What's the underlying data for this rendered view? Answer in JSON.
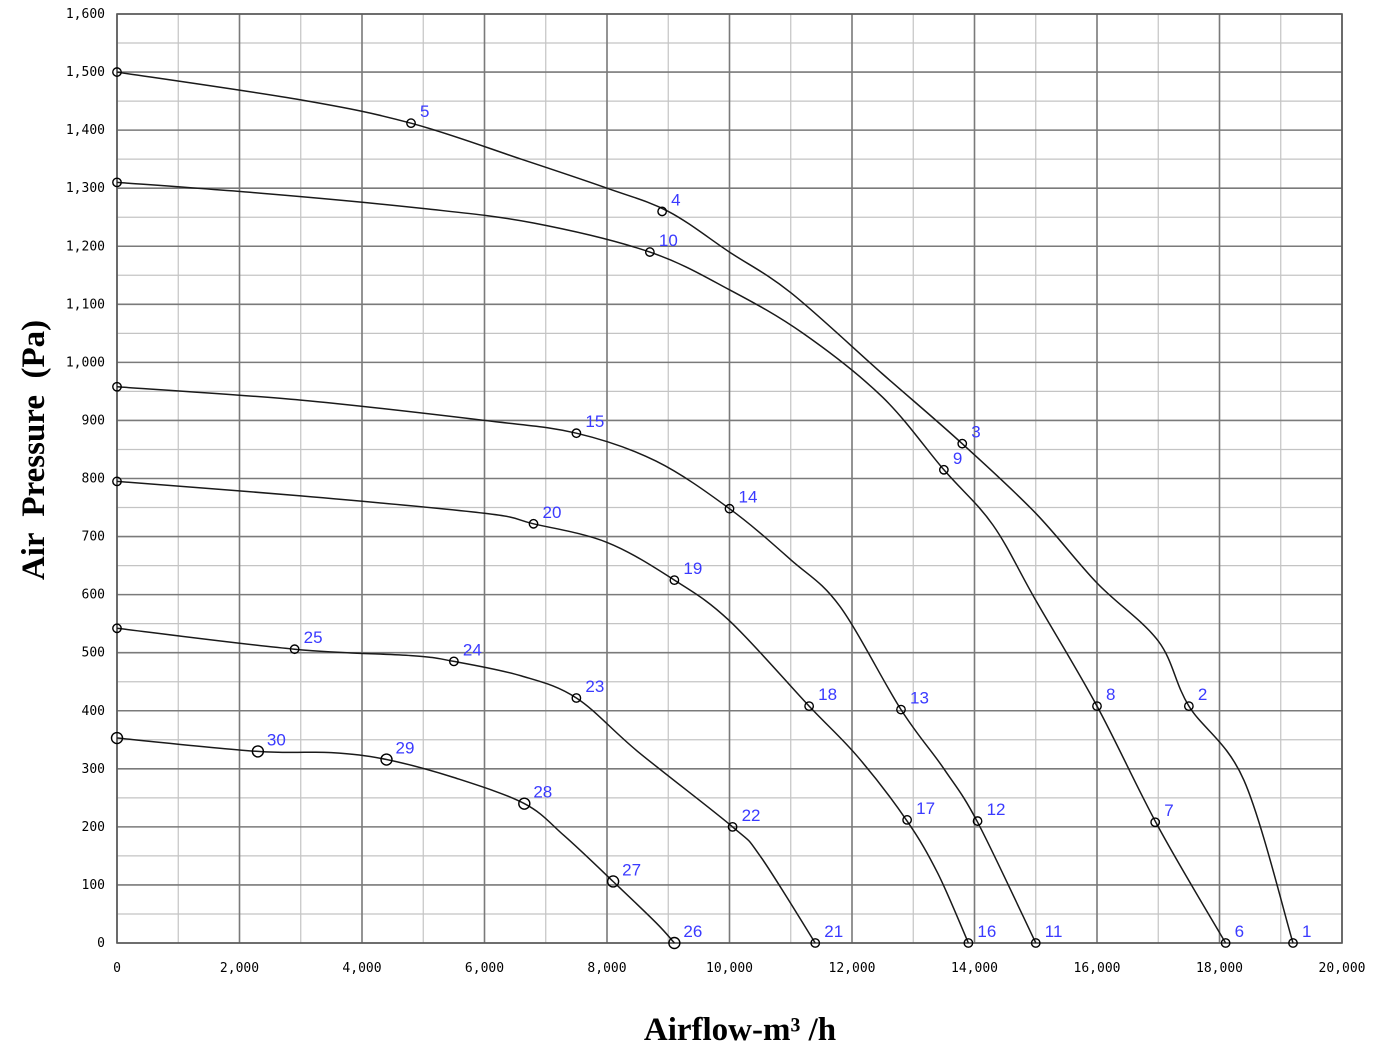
{
  "chart_data": {
    "type": "line",
    "xlabel": "Airflow-m³ /h",
    "ylabel": "Air  Pressure  (Pa)",
    "xlim": [
      0,
      20000
    ],
    "ylim": [
      0,
      1600
    ],
    "grid": true,
    "x_ticks": [
      {
        "value": 0,
        "label": "0"
      },
      {
        "value": 2000,
        "label": "2,000"
      },
      {
        "value": 4000,
        "label": "4,000"
      },
      {
        "value": 6000,
        "label": "6,000"
      },
      {
        "value": 8000,
        "label": "8,000"
      },
      {
        "value": 10000,
        "label": "10,000"
      },
      {
        "value": 12000,
        "label": "12,000"
      },
      {
        "value": 14000,
        "label": "14,000"
      },
      {
        "value": 16000,
        "label": "16,000"
      },
      {
        "value": 18000,
        "label": "18,000"
      },
      {
        "value": 20000,
        "label": "20,000"
      }
    ],
    "y_ticks": [
      {
        "value": 0,
        "label": "0"
      },
      {
        "value": 100,
        "label": "100"
      },
      {
        "value": 200,
        "label": "200"
      },
      {
        "value": 300,
        "label": "300"
      },
      {
        "value": 400,
        "label": "400"
      },
      {
        "value": 500,
        "label": "500"
      },
      {
        "value": 600,
        "label": "600"
      },
      {
        "value": 700,
        "label": "700"
      },
      {
        "value": 800,
        "label": "800"
      },
      {
        "value": 900,
        "label": "900"
      },
      {
        "value": 1000,
        "label": "1,000"
      },
      {
        "value": 1100,
        "label": "1,100"
      },
      {
        "value": 1200,
        "label": "1,200"
      },
      {
        "value": 1300,
        "label": "1,300"
      },
      {
        "value": 1400,
        "label": "1,400"
      },
      {
        "value": 1500,
        "label": "1,500"
      },
      {
        "value": 1600,
        "label": "1,600"
      }
    ],
    "series": [
      {
        "curve": [
          [
            0,
            1500
          ],
          [
            3000,
            1452
          ],
          [
            4800,
            1412
          ],
          [
            6600,
            1350
          ],
          [
            8000,
            1300
          ],
          [
            9000,
            1260
          ],
          [
            10000,
            1190
          ],
          [
            11000,
            1120
          ],
          [
            12500,
            980
          ],
          [
            13800,
            860
          ],
          [
            15000,
            740
          ],
          [
            16000,
            620
          ],
          [
            17000,
            520
          ],
          [
            17500,
            408
          ],
          [
            18400,
            280
          ],
          [
            19200,
            0
          ]
        ],
        "points": [
          {
            "label": "",
            "x": 0,
            "y": 1500
          },
          {
            "label": "5",
            "x": 4800,
            "y": 1412
          },
          {
            "label": "4",
            "x": 8900,
            "y": 1260
          },
          {
            "label": "3",
            "x": 13800,
            "y": 860
          },
          {
            "label": "2",
            "x": 17500,
            "y": 408
          },
          {
            "label": "1",
            "x": 19200,
            "y": 0
          }
        ]
      },
      {
        "curve": [
          [
            0,
            1310
          ],
          [
            2500,
            1290
          ],
          [
            5000,
            1265
          ],
          [
            6800,
            1240
          ],
          [
            8700,
            1190
          ],
          [
            10000,
            1125
          ],
          [
            11200,
            1050
          ],
          [
            12500,
            940
          ],
          [
            13500,
            815
          ],
          [
            14300,
            720
          ],
          [
            15000,
            590
          ],
          [
            16000,
            408
          ],
          [
            17000,
            200
          ],
          [
            18100,
            0
          ]
        ],
        "points": [
          {
            "label": "",
            "x": 0,
            "y": 1310
          },
          {
            "label": "10",
            "x": 8700,
            "y": 1190
          },
          {
            "label": "9",
            "x": 13500,
            "y": 815
          },
          {
            "label": "8",
            "x": 16000,
            "y": 408
          },
          {
            "label": "7",
            "x": 16950,
            "y": 208
          },
          {
            "label": "6",
            "x": 18100,
            "y": 0
          }
        ]
      },
      {
        "curve": [
          [
            0,
            958
          ],
          [
            3000,
            935
          ],
          [
            6000,
            900
          ],
          [
            7500,
            878
          ],
          [
            8800,
            830
          ],
          [
            10000,
            748
          ],
          [
            11000,
            660
          ],
          [
            11800,
            580
          ],
          [
            12800,
            402
          ],
          [
            13500,
            300
          ],
          [
            14050,
            208
          ],
          [
            15000,
            0
          ]
        ],
        "points": [
          {
            "label": "",
            "x": 0,
            "y": 958
          },
          {
            "label": "15",
            "x": 7500,
            "y": 878
          },
          {
            "label": "14",
            "x": 10000,
            "y": 748
          },
          {
            "label": "13",
            "x": 12800,
            "y": 402
          },
          {
            "label": "12",
            "x": 14050,
            "y": 210
          },
          {
            "label": "11",
            "x": 15000,
            "y": 0
          }
        ]
      },
      {
        "curve": [
          [
            0,
            795
          ],
          [
            3000,
            770
          ],
          [
            6000,
            740
          ],
          [
            6800,
            722
          ],
          [
            8000,
            690
          ],
          [
            9100,
            625
          ],
          [
            10000,
            555
          ],
          [
            11300,
            408
          ],
          [
            12100,
            320
          ],
          [
            12900,
            210
          ],
          [
            13400,
            120
          ],
          [
            13900,
            0
          ]
        ],
        "points": [
          {
            "label": "",
            "x": 0,
            "y": 795
          },
          {
            "label": "20",
            "x": 6800,
            "y": 722
          },
          {
            "label": "19",
            "x": 9100,
            "y": 625
          },
          {
            "label": "18",
            "x": 11300,
            "y": 408
          },
          {
            "label": "17",
            "x": 12900,
            "y": 212
          },
          {
            "label": "16",
            "x": 13900,
            "y": 0
          }
        ]
      },
      {
        "curve": [
          [
            0,
            542
          ],
          [
            2900,
            506
          ],
          [
            4800,
            495
          ],
          [
            5500,
            485
          ],
          [
            6600,
            460
          ],
          [
            7500,
            422
          ],
          [
            8500,
            330
          ],
          [
            10050,
            200
          ],
          [
            10500,
            150
          ],
          [
            11400,
            0
          ]
        ],
        "points": [
          {
            "label": "",
            "x": 0,
            "y": 542
          },
          {
            "label": "25",
            "x": 2900,
            "y": 506
          },
          {
            "label": "24",
            "x": 5500,
            "y": 485
          },
          {
            "label": "23",
            "x": 7500,
            "y": 422
          },
          {
            "label": "22",
            "x": 10050,
            "y": 200
          },
          {
            "label": "21",
            "x": 11400,
            "y": 0
          }
        ]
      },
      {
        "curve": [
          [
            0,
            353
          ],
          [
            2300,
            330
          ],
          [
            3500,
            328
          ],
          [
            4400,
            316
          ],
          [
            5500,
            285
          ],
          [
            6650,
            240
          ],
          [
            7300,
            185
          ],
          [
            8100,
            106
          ],
          [
            8800,
            35
          ],
          [
            9100,
            0
          ]
        ],
        "points": [
          {
            "label": "",
            "x": 0,
            "y": 353
          },
          {
            "label": "30",
            "x": 2300,
            "y": 330
          },
          {
            "label": "29",
            "x": 4400,
            "y": 316
          },
          {
            "label": "28",
            "x": 6650,
            "y": 240
          },
          {
            "label": "27",
            "x": 8100,
            "y": 106
          },
          {
            "label": "26",
            "x": 9100,
            "y": 0
          }
        ]
      }
    ]
  }
}
